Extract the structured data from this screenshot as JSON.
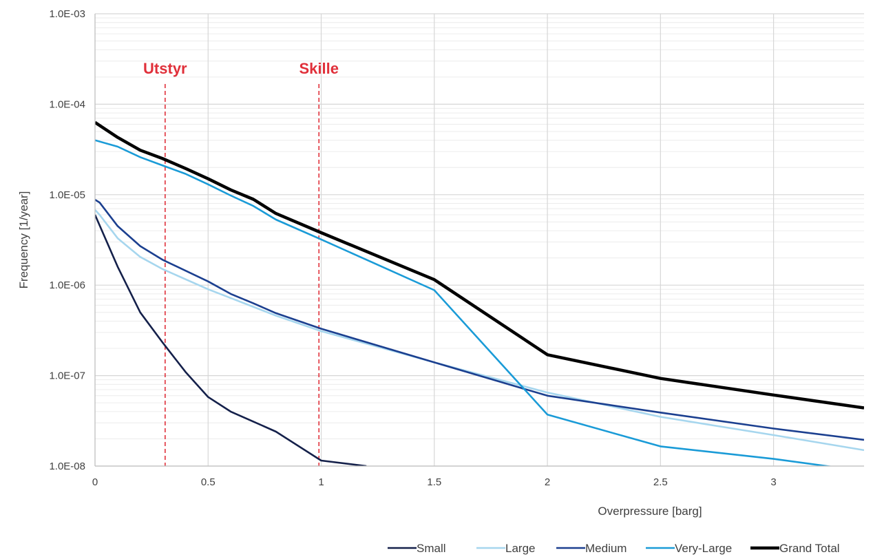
{
  "chart_data": {
    "type": "line",
    "xlabel": "Overpressure [barg]",
    "ylabel": "Frequency [1/year]",
    "xlim": [
      0,
      3.4
    ],
    "ylim": [
      1e-08,
      0.001
    ],
    "y_scale": "log",
    "x_ticks": [
      0,
      0.5,
      1,
      1.5,
      2,
      2.5,
      3
    ],
    "x_tick_labels": [
      "0",
      "0.5",
      "1",
      "1.5",
      "2",
      "2.5",
      "3"
    ],
    "y_ticks": [
      1e-08,
      1e-07,
      1e-06,
      1e-05,
      0.0001,
      0.001
    ],
    "y_tick_labels": [
      "1.0E-08",
      "1.0E-07",
      "1.0E-06",
      "1.0E-05",
      "1.0E-04",
      "1.0E-03"
    ],
    "grid": true,
    "legend_position": "bottom-right",
    "series": [
      {
        "name": "Small",
        "color": "#14204a",
        "x": [
          0,
          0.1,
          0.2,
          0.3,
          0.4,
          0.5,
          0.6,
          0.7,
          0.8,
          1.0,
          1.2
        ],
        "y": [
          6e-06,
          1.6e-06,
          5e-07,
          2.3e-07,
          1.1e-07,
          5.8e-08,
          4e-08,
          3.1e-08,
          2.4e-08,
          1.15e-08,
          1e-08
        ]
      },
      {
        "name": "Large",
        "color": "#a6d6ee",
        "x": [
          0,
          0.02,
          0.1,
          0.2,
          0.3,
          0.5,
          0.6,
          0.8,
          1.0,
          1.5,
          2.0,
          2.5,
          3.0,
          3.4
        ],
        "y": [
          6.8e-06,
          6e-06,
          3.3e-06,
          2.05e-06,
          1.5e-06,
          9e-07,
          7.2e-07,
          4.6e-07,
          3.1e-07,
          1.4e-07,
          6.5e-08,
          3.5e-08,
          2.2e-08,
          1.5e-08
        ]
      },
      {
        "name": "Medium",
        "color": "#1b3f8f",
        "x": [
          0,
          0.02,
          0.1,
          0.2,
          0.3,
          0.5,
          0.6,
          0.7,
          0.8,
          1.0,
          1.5,
          2.0,
          2.5,
          3.0,
          3.4
        ],
        "y": [
          8.8e-06,
          8.2e-06,
          4.5e-06,
          2.7e-06,
          1.9e-06,
          1.1e-06,
          8e-07,
          6.3e-07,
          4.9e-07,
          3.3e-07,
          1.4e-07,
          6e-08,
          3.9e-08,
          2.6e-08,
          1.95e-08
        ]
      },
      {
        "name": "Very-Large",
        "color": "#1a9bd7",
        "x": [
          0,
          0.1,
          0.2,
          0.3,
          0.4,
          0.5,
          0.6,
          0.7,
          0.8,
          1.0,
          1.5,
          2.0,
          2.5,
          3.0,
          3.3
        ],
        "y": [
          4e-05,
          3.4e-05,
          2.6e-05,
          2.1e-05,
          1.7e-05,
          1.3e-05,
          9.8e-06,
          7.5e-06,
          5.3e-06,
          3.2e-06,
          8.8e-07,
          3.7e-08,
          1.65e-08,
          1.2e-08,
          9.5e-09
        ]
      },
      {
        "name": "Grand Total",
        "color": "#000000",
        "x": [
          0,
          0.1,
          0.2,
          0.3,
          0.4,
          0.5,
          0.6,
          0.7,
          0.8,
          1.0,
          1.5,
          2.0,
          2.5,
          3.0,
          3.4
        ],
        "y": [
          6.3e-05,
          4.3e-05,
          3.1e-05,
          2.5e-05,
          1.95e-05,
          1.5e-05,
          1.13e-05,
          8.9e-06,
          6.2e-06,
          3.8e-06,
          1.15e-06,
          1.7e-07,
          9.3e-08,
          6.1e-08,
          4.4e-08
        ]
      }
    ],
    "annotations": [
      {
        "label": "Utstyr",
        "x": 0.31,
        "color": "#e0303a"
      },
      {
        "label": "Skille",
        "x": 0.99,
        "color": "#e0303a"
      }
    ]
  }
}
